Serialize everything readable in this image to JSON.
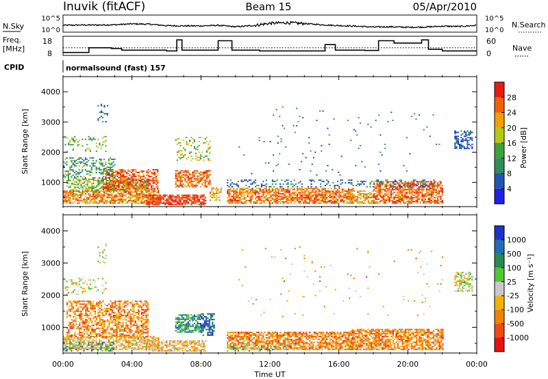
{
  "header": {
    "title": "Inuvik (fitACF)",
    "beam": "Beam 15",
    "date": "05/Apr/2010"
  },
  "top_panel": {
    "left_label": "N.Sky",
    "right_label": "N.Search",
    "left_ticks": [
      "10^5",
      "10^0"
    ],
    "right_ticks": [
      "10^5",
      "10^0"
    ]
  },
  "freq_panel": {
    "left_label_1": "Freq.",
    "left_label_2": "[MHz]",
    "right_label": "Nave",
    "left_ticks": [
      "18",
      "8"
    ],
    "right_ticks": [
      "60",
      "0"
    ]
  },
  "cpid": {
    "label": "CPID",
    "text": "normalsound (fast) 157"
  },
  "colors": {
    "power": [
      "#1e20e8",
      "#1e56b4",
      "#2e8c5a",
      "#3aa23a",
      "#b4c814",
      "#f0a000",
      "#f06000",
      "#e81c10"
    ],
    "velocity": [
      "#e81010",
      "#f04a10",
      "#f08200",
      "#f0b400",
      "#c8c8c8",
      "#50c832",
      "#288a50",
      "#1e6eb4",
      "#1e32c8"
    ]
  },
  "chart_data": [
    {
      "type": "line",
      "title": "N.Sky / N.Search",
      "x_range": [
        0,
        24
      ],
      "ylim_left": [
        0,
        5
      ],
      "ylim_right": [
        0,
        5
      ],
      "series": [
        {
          "name": "N.Sky",
          "style": "solid",
          "x": [
            0,
            1,
            2,
            3,
            4,
            5,
            6,
            7,
            8,
            9,
            10,
            11,
            12,
            13,
            14,
            15,
            16,
            17,
            18,
            19,
            20,
            21,
            22,
            23,
            24
          ],
          "values": [
            1.9,
            2.0,
            2.0,
            2.1,
            2.4,
            2.3,
            1.8,
            1.7,
            1.7,
            1.9,
            1.4,
            1.8,
            2.6,
            2.8,
            2.5,
            2.1,
            1.8,
            1.6,
            1.3,
            1.4,
            1.2,
            1.3,
            1.6,
            1.5,
            1.9
          ]
        },
        {
          "name": "N.Search",
          "style": "dotted",
          "x": [],
          "values": []
        }
      ]
    },
    {
      "type": "line",
      "title": "Freq. / Nave",
      "x_range": [
        0,
        24
      ],
      "ylim_left": [
        8,
        18
      ],
      "ylim_right": [
        0,
        60
      ],
      "series": [
        {
          "name": "Freq.",
          "style": "step",
          "x": [
            0,
            1.5,
            1.5,
            2.8,
            2.8,
            3.4,
            3.4,
            6.0,
            6.0,
            6.6,
            6.6,
            6.9,
            6.9,
            9.0,
            9.0,
            9.8,
            9.8,
            11.4,
            11.4,
            15.2,
            15.2,
            15.8,
            15.8,
            17.5,
            17.5,
            18.3,
            18.3,
            19.2,
            19.2,
            20.8,
            20.8,
            21.2,
            21.2,
            22.0,
            22.0,
            24
          ],
          "values": [
            9,
            9,
            12,
            12,
            11.5,
            11.5,
            10.5,
            10.5,
            10,
            10,
            17,
            17,
            10.5,
            10.5,
            16.5,
            16.5,
            10.5,
            10.5,
            10,
            10,
            14,
            14,
            10.5,
            10.5,
            10.3,
            10.3,
            16.5,
            16.5,
            15,
            15,
            17,
            17,
            11,
            11,
            10,
            10
          ]
        },
        {
          "name": "Nave",
          "style": "dotted",
          "x": [
            0,
            24
          ],
          "values": [
            24,
            24
          ]
        }
      ]
    },
    {
      "type": "heatmap",
      "title": "Power",
      "xlabel": "",
      "ylabel": "Slant Range [km]",
      "x_range": [
        0,
        24
      ],
      "ylim": [
        200,
        4500
      ],
      "y_ticks": [
        1000,
        2000,
        3000,
        4000
      ],
      "colorbar": {
        "label": "Power [dB]",
        "ticks": [
          4,
          8,
          12,
          16,
          20,
          24,
          28
        ],
        "range": [
          0,
          32
        ]
      },
      "patches": [
        {
          "t": [
            0.0,
            5.5
          ],
          "r": [
            250,
            700
          ],
          "v": 24,
          "sparse": 0.3
        },
        {
          "t": [
            0.2,
            4.9
          ],
          "r": [
            650,
            1100
          ],
          "v": 16,
          "sparse": 0.45
        },
        {
          "t": [
            2.3,
            5.5
          ],
          "r": [
            700,
            1400
          ],
          "v": 27,
          "sparse": 0.4
        },
        {
          "t": [
            0.0,
            3.0
          ],
          "r": [
            1100,
            1800
          ],
          "v": 12,
          "sparse": 0.65
        },
        {
          "t": [
            0.1,
            2.5
          ],
          "r": [
            2000,
            2500
          ],
          "v": 15,
          "sparse": 0.8
        },
        {
          "t": [
            2.0,
            2.6
          ],
          "r": [
            3000,
            3600
          ],
          "v": 7,
          "sparse": 0.8
        },
        {
          "t": [
            4.8,
            8.3
          ],
          "r": [
            200,
            550
          ],
          "v": 29,
          "sparse": 0.25
        },
        {
          "t": [
            6.5,
            8.5
          ],
          "r": [
            800,
            1350
          ],
          "v": 26,
          "sparse": 0.35
        },
        {
          "t": [
            6.5,
            8.5
          ],
          "r": [
            1700,
            2500
          ],
          "v": 17,
          "sparse": 0.8
        },
        {
          "t": [
            8.5,
            9.2
          ],
          "r": [
            350,
            800
          ],
          "v": 22,
          "sparse": 0.5
        },
        {
          "t": [
            9.5,
            16.8
          ],
          "r": [
            250,
            750
          ],
          "v": 25,
          "sparse": 0.3
        },
        {
          "t": [
            16.5,
            18.0
          ],
          "r": [
            250,
            700
          ],
          "v": 22,
          "sparse": 0.4
        },
        {
          "t": [
            18.0,
            22.0
          ],
          "r": [
            250,
            1000
          ],
          "v": 26,
          "sparse": 0.3
        },
        {
          "t": [
            9.5,
            21.5
          ],
          "r": [
            800,
            1050
          ],
          "v": 8,
          "sparse": 0.75
        },
        {
          "t": [
            22.7,
            23.7
          ],
          "r": [
            2100,
            2700
          ],
          "v": 6,
          "sparse": 0.45
        },
        {
          "t": [
            10.0,
            22.0
          ],
          "r": [
            1200,
            3500
          ],
          "v": 10,
          "sparse": 0.985
        }
      ]
    },
    {
      "type": "heatmap",
      "title": "Velocity",
      "xlabel": "Time UT",
      "ylabel": "Slant Range [km]",
      "x_range": [
        0,
        24
      ],
      "x_ticks": [
        "00:00",
        "04:00",
        "08:00",
        "12:00",
        "16:00",
        "20:00",
        "00:00"
      ],
      "ylim": [
        200,
        4500
      ],
      "y_ticks": [
        1000,
        2000,
        3000,
        4000
      ],
      "colorbar": {
        "label": "Velocity [m s⁻¹]",
        "ticks": [
          "1000",
          "500",
          "100",
          "25",
          "-25",
          "-100",
          "-500",
          "-1000"
        ],
        "range": [
          -1250,
          1250
        ]
      },
      "patches": [
        {
          "t": [
            0.0,
            5.5
          ],
          "r": [
            250,
            700
          ],
          "v": -60,
          "sparse": 0.35
        },
        {
          "t": [
            0.2,
            4.9
          ],
          "r": [
            650,
            1800
          ],
          "v": -150,
          "sparse": 0.45
        },
        {
          "t": [
            0.0,
            3.0
          ],
          "r": [
            200,
            500
          ],
          "v": 150,
          "sparse": 0.65
        },
        {
          "t": [
            0.1,
            2.5
          ],
          "r": [
            2000,
            2500
          ],
          "v": 0,
          "sparse": 0.8
        },
        {
          "t": [
            2.0,
            2.6
          ],
          "r": [
            3000,
            3600
          ],
          "v": 0,
          "sparse": 0.8
        },
        {
          "t": [
            4.8,
            8.3
          ],
          "r": [
            200,
            550
          ],
          "v": -60,
          "sparse": 0.35
        },
        {
          "t": [
            6.5,
            8.0
          ],
          "r": [
            800,
            1350
          ],
          "v": 200,
          "sparse": 0.35
        },
        {
          "t": [
            8.0,
            8.8
          ],
          "r": [
            700,
            1400
          ],
          "v": 900,
          "sparse": 0.35
        },
        {
          "t": [
            9.5,
            16.8
          ],
          "r": [
            250,
            800
          ],
          "v": -250,
          "sparse": 0.3
        },
        {
          "t": [
            16.5,
            22.0
          ],
          "r": [
            250,
            900
          ],
          "v": -150,
          "sparse": 0.3
        },
        {
          "t": [
            9.5,
            13.0
          ],
          "r": [
            200,
            400
          ],
          "v": 80,
          "sparse": 0.7
        },
        {
          "t": [
            22.7,
            23.7
          ],
          "r": [
            2100,
            2700
          ],
          "v": 0,
          "sparse": 0.45
        },
        {
          "t": [
            10.0,
            22.0
          ],
          "r": [
            1200,
            3500
          ],
          "v": -60,
          "sparse": 0.985
        }
      ]
    }
  ]
}
